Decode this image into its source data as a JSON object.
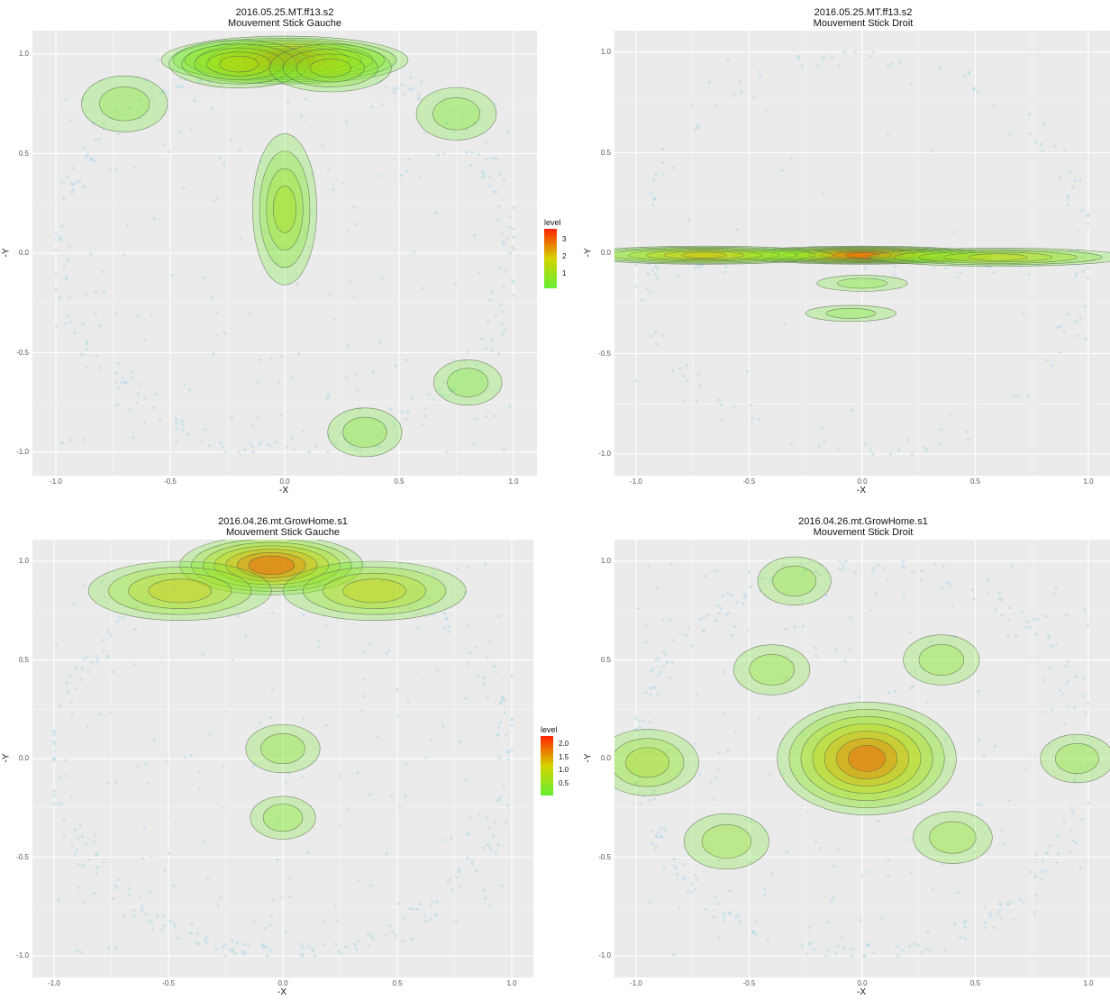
{
  "chart_data": [
    {
      "type": "heatmap",
      "title": "2016.05.25.MT.ff13.s2",
      "subtitle": "Mouvement Stick Gauche",
      "xlabel": "-X",
      "ylabel": "-Y",
      "xlim": [
        -1.0,
        1.0
      ],
      "ylim": [
        -1.0,
        1.0
      ],
      "x_ticks": [
        "-1.0",
        "-0.5",
        "0.0",
        "0.5",
        "1.0"
      ],
      "y_ticks": [
        "1.0",
        "0.5",
        "0.0",
        "-0.5",
        "-1.0"
      ],
      "legend": {
        "title": "level",
        "labels": [
          "3",
          "2",
          "1"
        ],
        "placement": "right"
      },
      "density_peaks": [
        {
          "x": 0.0,
          "y": 0.97,
          "level": 3.3
        },
        {
          "x": -0.2,
          "y": 0.95,
          "level": 1.5
        },
        {
          "x": 0.2,
          "y": 0.93,
          "level": 1.2
        },
        {
          "x": 0.0,
          "y": 0.22,
          "level": 1.3
        },
        {
          "x": -0.7,
          "y": 0.75,
          "level": 0.6
        },
        {
          "x": 0.75,
          "y": 0.7,
          "level": 0.5
        },
        {
          "x": 0.35,
          "y": -0.9,
          "level": 0.4
        },
        {
          "x": 0.8,
          "y": -0.65,
          "level": 0.3
        }
      ]
    },
    {
      "type": "heatmap",
      "title": "2016.05.25.MT.ff13.s2",
      "subtitle": "Mouvement Stick Droit",
      "xlabel": "-X",
      "ylabel": "-Y",
      "xlim": [
        -1.0,
        1.0
      ],
      "ylim": [
        -1.0,
        1.0
      ],
      "x_ticks": [
        "-1.0",
        "-0.5",
        "0.0",
        "0.5",
        "1.0"
      ],
      "y_ticks": [
        "1.0",
        "0.5",
        "0.0",
        "-0.5",
        "-1.0"
      ],
      "density_peaks": [
        {
          "x": 0.0,
          "y": -0.01,
          "level": 3.3
        },
        {
          "x": -0.7,
          "y": -0.01,
          "level": 2.2
        },
        {
          "x": 0.6,
          "y": -0.02,
          "level": 1.8
        },
        {
          "x": 0.0,
          "y": -0.15,
          "level": 0.5
        },
        {
          "x": -0.05,
          "y": -0.3,
          "level": 0.3
        }
      ]
    },
    {
      "type": "heatmap",
      "title": "2016.04.26.mt.GrowHome.s1",
      "subtitle": "Mouvement Stick Gauche",
      "xlabel": "-X",
      "ylabel": "-Y",
      "xlim": [
        -1.0,
        1.0
      ],
      "ylim": [
        -1.0,
        1.0
      ],
      "x_ticks": [
        "-1.0",
        "-0.5",
        "0.0",
        "0.5",
        "1.0"
      ],
      "y_ticks": [
        "1.0",
        "0.5",
        "0.0",
        "-0.5",
        "-1.0"
      ],
      "legend": {
        "title": "level",
        "labels": [
          "2.0",
          "1.5",
          "1.0",
          "0.5"
        ],
        "placement": "right"
      },
      "density_peaks": [
        {
          "x": -0.05,
          "y": 0.98,
          "level": 2.2
        },
        {
          "x": -0.45,
          "y": 0.85,
          "level": 1.4
        },
        {
          "x": 0.4,
          "y": 0.85,
          "level": 1.3
        },
        {
          "x": 0.0,
          "y": 0.05,
          "level": 0.4
        },
        {
          "x": 0.0,
          "y": -0.3,
          "level": 0.25
        }
      ]
    },
    {
      "type": "heatmap",
      "title": "2016.04.26.mt.GrowHome.s1",
      "subtitle": "Mouvement Stick Droit",
      "xlabel": "-X",
      "ylabel": "-Y",
      "xlim": [
        -1.0,
        1.0
      ],
      "ylim": [
        -1.0,
        1.0
      ],
      "x_ticks": [
        "-1.0",
        "-0.5",
        "0.0",
        "0.5",
        "1.0"
      ],
      "y_ticks": [
        "1.0",
        "0.5",
        "0.0",
        "-0.5",
        "-1.0"
      ],
      "density_peaks": [
        {
          "x": 0.02,
          "y": 0.0,
          "level": 2.2
        },
        {
          "x": -0.95,
          "y": -0.02,
          "level": 0.9
        },
        {
          "x": -0.6,
          "y": -0.42,
          "level": 0.6
        },
        {
          "x": 0.4,
          "y": -0.4,
          "level": 0.5
        },
        {
          "x": -0.4,
          "y": 0.45,
          "level": 0.45
        },
        {
          "x": 0.35,
          "y": 0.5,
          "level": 0.45
        },
        {
          "x": -0.3,
          "y": 0.9,
          "level": 0.4
        },
        {
          "x": 0.95,
          "y": 0.0,
          "level": 0.4
        }
      ]
    }
  ],
  "colors": {
    "panel_bg": "#ebebeb",
    "grid": "#ffffff",
    "points": "#add8e6",
    "low": "#66ee33",
    "high": "#ff2200",
    "contour": "#5a6a4a"
  }
}
